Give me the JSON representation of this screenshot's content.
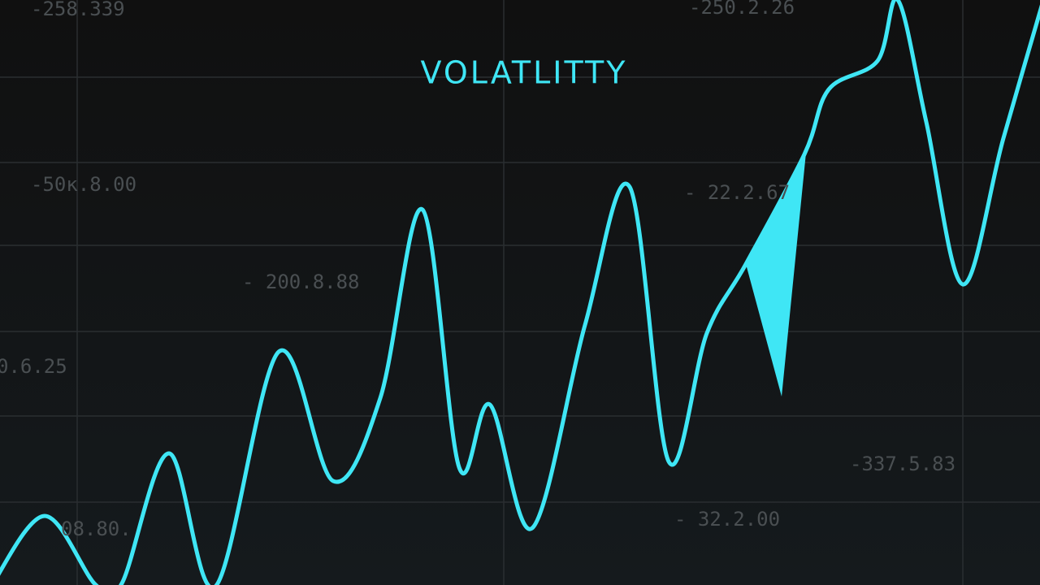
{
  "title": "VOLATLITTY",
  "labels": [
    "-258.339",
    "-250.2.26",
    "-50ĸ.8.00",
    "- 22.2.67",
    "- 200.8.88",
    "0.6.25",
    "-337.5.83",
    "08.80.",
    "- 32.2.00"
  ]
}
